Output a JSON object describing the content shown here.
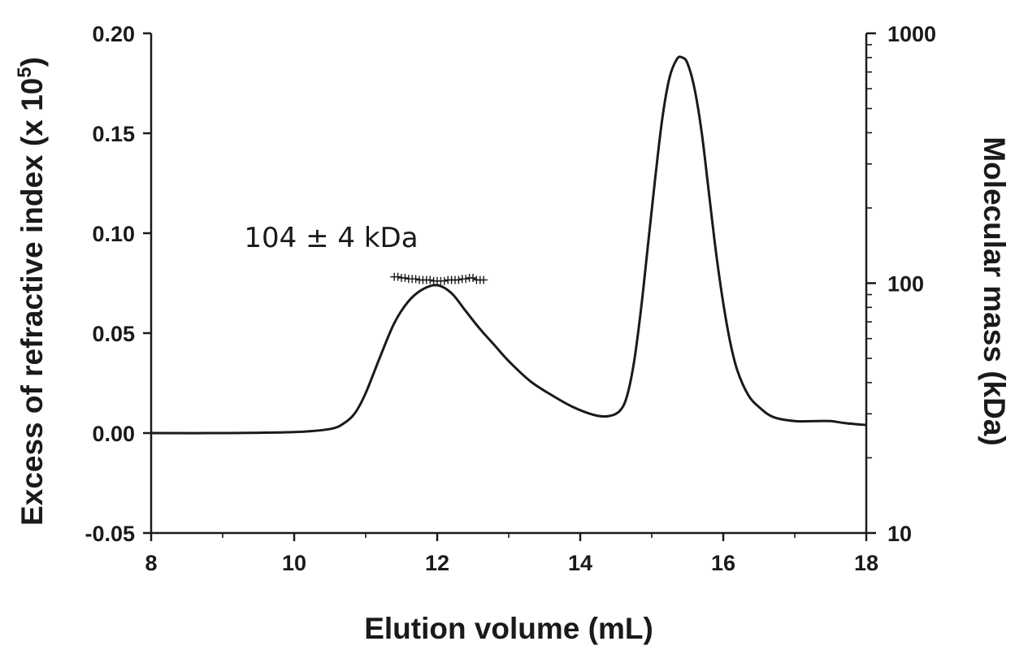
{
  "chart_data": {
    "type": "line",
    "title": "",
    "xlabel": "Elution volume (mL)",
    "ylabel": "Excess of refractive index (x 10",
    "ylabel_superscript": "5",
    "ylabel_close": ")",
    "y2label": "Molecular mass (kDa)",
    "xlim": [
      8,
      18
    ],
    "ylim": [
      -0.05,
      0.2
    ],
    "y2lim": [
      10,
      1000
    ],
    "y2scale": "log",
    "x_ticks": [
      "8",
      "10",
      "12",
      "14",
      "16",
      "18"
    ],
    "y_ticks": [
      "-0.05",
      "0.00",
      "0.05",
      "0.10",
      "0.15",
      "0.20"
    ],
    "y2_ticks": [
      "10",
      "100",
      "1000"
    ],
    "grid": false,
    "legend": "none",
    "annotation": "104 ± 4 kDa",
    "series": [
      {
        "axis": "left",
        "style": "line",
        "x": [
          8.0,
          9.0,
          10.0,
          10.5,
          10.7,
          10.85,
          11.0,
          11.2,
          11.4,
          11.6,
          11.8,
          12.0,
          12.2,
          12.4,
          12.6,
          12.8,
          13.0,
          13.3,
          13.6,
          13.9,
          14.2,
          14.4,
          14.55,
          14.65,
          14.75,
          14.85,
          14.95,
          15.05,
          15.15,
          15.25,
          15.35,
          15.42,
          15.5,
          15.6,
          15.7,
          15.8,
          15.9,
          16.0,
          16.1,
          16.2,
          16.35,
          16.5,
          16.7,
          17.0,
          17.3,
          17.5,
          17.7,
          18.0
        ],
        "y": [
          0.0,
          0.0,
          0.0005,
          0.002,
          0.005,
          0.01,
          0.02,
          0.038,
          0.055,
          0.066,
          0.072,
          0.074,
          0.07,
          0.061,
          0.052,
          0.044,
          0.036,
          0.026,
          0.019,
          0.013,
          0.009,
          0.0085,
          0.011,
          0.018,
          0.035,
          0.062,
          0.095,
          0.128,
          0.158,
          0.178,
          0.187,
          0.188,
          0.185,
          0.172,
          0.15,
          0.12,
          0.09,
          0.065,
          0.045,
          0.031,
          0.019,
          0.013,
          0.008,
          0.006,
          0.006,
          0.006,
          0.005,
          0.004
        ]
      },
      {
        "axis": "right",
        "style": "markers",
        "marker": "+",
        "x": [
          11.4,
          11.45,
          11.5,
          11.55,
          11.6,
          11.65,
          11.7,
          11.75,
          11.8,
          11.85,
          11.9,
          11.95,
          12.0,
          12.05,
          12.1,
          12.15,
          12.2,
          12.25,
          12.3,
          12.35,
          12.4,
          12.45,
          12.5,
          12.55,
          12.6,
          12.65
        ],
        "y": [
          106,
          106,
          105,
          105,
          104,
          104,
          104,
          103,
          103,
          103,
          103,
          102,
          102,
          102,
          102,
          103,
          103,
          103,
          103,
          104,
          104,
          105,
          105,
          103,
          103,
          103
        ]
      }
    ]
  }
}
